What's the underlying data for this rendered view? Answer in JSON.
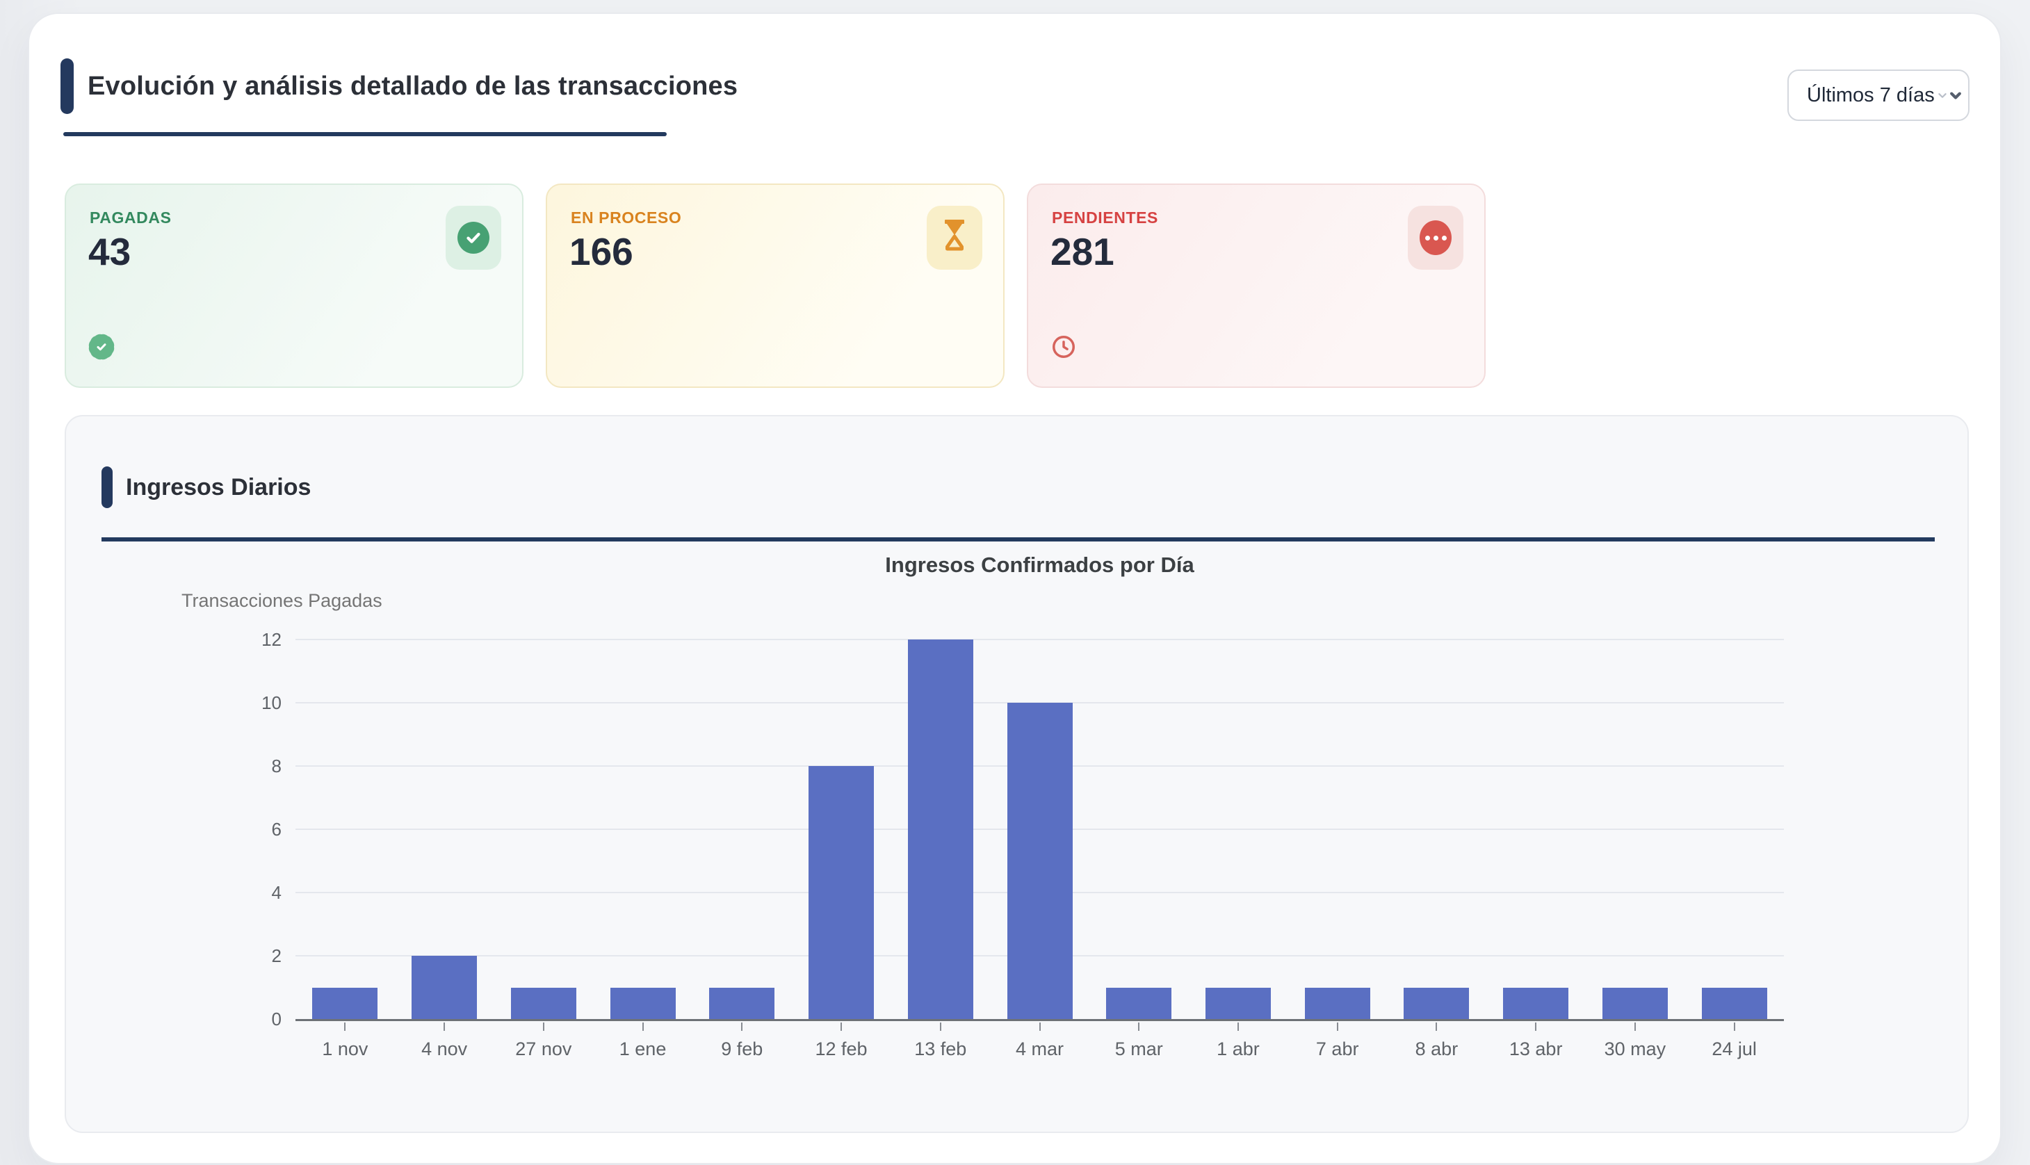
{
  "header": {
    "title": "Evolución y análisis detallado de las transacciones",
    "range_selector": {
      "value": "Últimos 7 días"
    }
  },
  "stats": {
    "cards": [
      {
        "label": "PAGADAS",
        "value": "43",
        "accent_color": "#33895e",
        "status_icon": "check-circle-icon",
        "footer_icon": "verified-badge-icon"
      },
      {
        "label": "EN PROCESO",
        "value": "166",
        "accent_color": "#d9831f",
        "status_icon": "hourglass-icon"
      },
      {
        "label": "PENDIENTES",
        "value": "281",
        "accent_color": "#d64242",
        "status_icon": "ellipsis-circle-icon",
        "footer_icon": "clock-icon"
      }
    ]
  },
  "chart_section": {
    "title": "Ingresos Diarios"
  },
  "chart_data": {
    "type": "bar",
    "title": "Ingresos Confirmados por Día",
    "ylabel": "Transacciones Pagadas",
    "xlabel": "",
    "categories": [
      "1 nov",
      "4 nov",
      "27 nov",
      "1 ene",
      "9 feb",
      "12 feb",
      "13 feb",
      "4 mar",
      "5 mar",
      "1 abr",
      "7 abr",
      "8 abr",
      "13 abr",
      "30 may",
      "24 jul"
    ],
    "values": [
      1,
      2,
      1,
      1,
      1,
      8,
      12,
      10,
      1,
      1,
      1,
      1,
      1,
      1,
      1
    ],
    "ylim": [
      0,
      12
    ],
    "yticks": [
      0,
      2,
      4,
      6,
      8,
      10,
      12
    ],
    "grid": true,
    "legend": "none",
    "bar_color": "#5a6fc2",
    "accent_navy": "#24395e"
  }
}
